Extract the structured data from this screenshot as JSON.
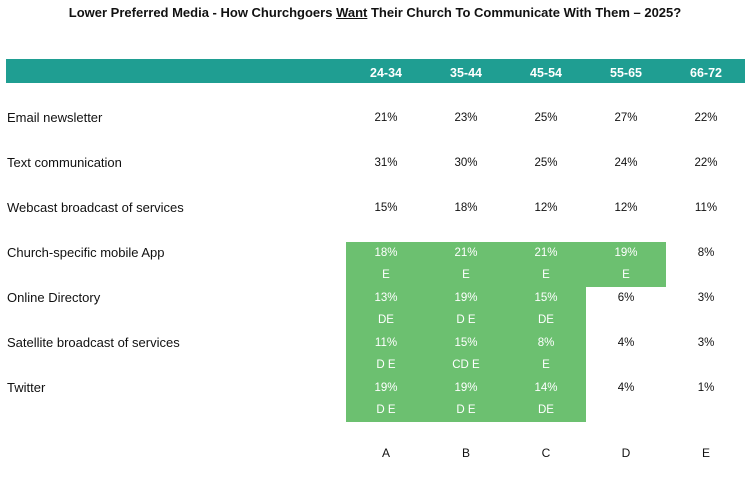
{
  "title": {
    "prefix": "Lower Preferred Media -  How Churchgoers ",
    "emph": "Want",
    "suffix": " Their Church To Communicate With Them – 2025?"
  },
  "columns": [
    "24-34",
    "35-44",
    "45-54",
    "55-65",
    "66-72"
  ],
  "column_letters": [
    "A",
    "B",
    "C",
    "D",
    "E"
  ],
  "colors": {
    "header": "#1f9e92",
    "highlight": "#6cc070"
  },
  "chart_data": {
    "type": "table",
    "title": "Lower Preferred Media -  How Churchgoers Want Their Church To Communicate With Them – 2025?",
    "categories": [
      "24-34",
      "35-44",
      "45-54",
      "55-65",
      "66-72"
    ],
    "rows": [
      {
        "label": "Email newsletter",
        "values": [
          "21%",
          "23%",
          "25%",
          "27%",
          "22%"
        ],
        "sig": [
          "",
          "",
          "",
          "",
          ""
        ],
        "highlight": [
          false,
          false,
          false,
          false,
          false
        ]
      },
      {
        "label": "Text communication",
        "values": [
          "31%",
          "30%",
          "25%",
          "24%",
          "22%"
        ],
        "sig": [
          "",
          "",
          "",
          "",
          ""
        ],
        "highlight": [
          false,
          false,
          false,
          false,
          false
        ]
      },
      {
        "label": "Webcast broadcast of services",
        "values": [
          "15%",
          "18%",
          "12%",
          "12%",
          "11%"
        ],
        "sig": [
          "",
          "",
          "",
          "",
          ""
        ],
        "highlight": [
          false,
          false,
          false,
          false,
          false
        ]
      },
      {
        "label": "Church-specific mobile App",
        "values": [
          "18%",
          "21%",
          "21%",
          "19%",
          "8%"
        ],
        "sig": [
          "E",
          "E",
          "E",
          "E",
          ""
        ],
        "highlight": [
          true,
          true,
          true,
          true,
          false
        ]
      },
      {
        "label": "Online Directory",
        "values": [
          "13%",
          "19%",
          "15%",
          "6%",
          "3%"
        ],
        "sig": [
          "DE",
          "D E",
          "DE",
          "",
          ""
        ],
        "highlight": [
          true,
          true,
          true,
          false,
          false
        ]
      },
      {
        "label": "Satellite broadcast of services",
        "values": [
          "11%",
          "15%",
          "8%",
          "4%",
          "3%"
        ],
        "sig": [
          "D E",
          "CD E",
          "E",
          "",
          ""
        ],
        "highlight": [
          true,
          true,
          true,
          false,
          false
        ]
      },
      {
        "label": "Twitter",
        "values": [
          "19%",
          "19%",
          "14%",
          "4%",
          "1%"
        ],
        "sig": [
          "D E",
          "D E",
          "DE",
          "",
          ""
        ],
        "highlight": [
          true,
          true,
          true,
          false,
          false
        ]
      }
    ]
  }
}
